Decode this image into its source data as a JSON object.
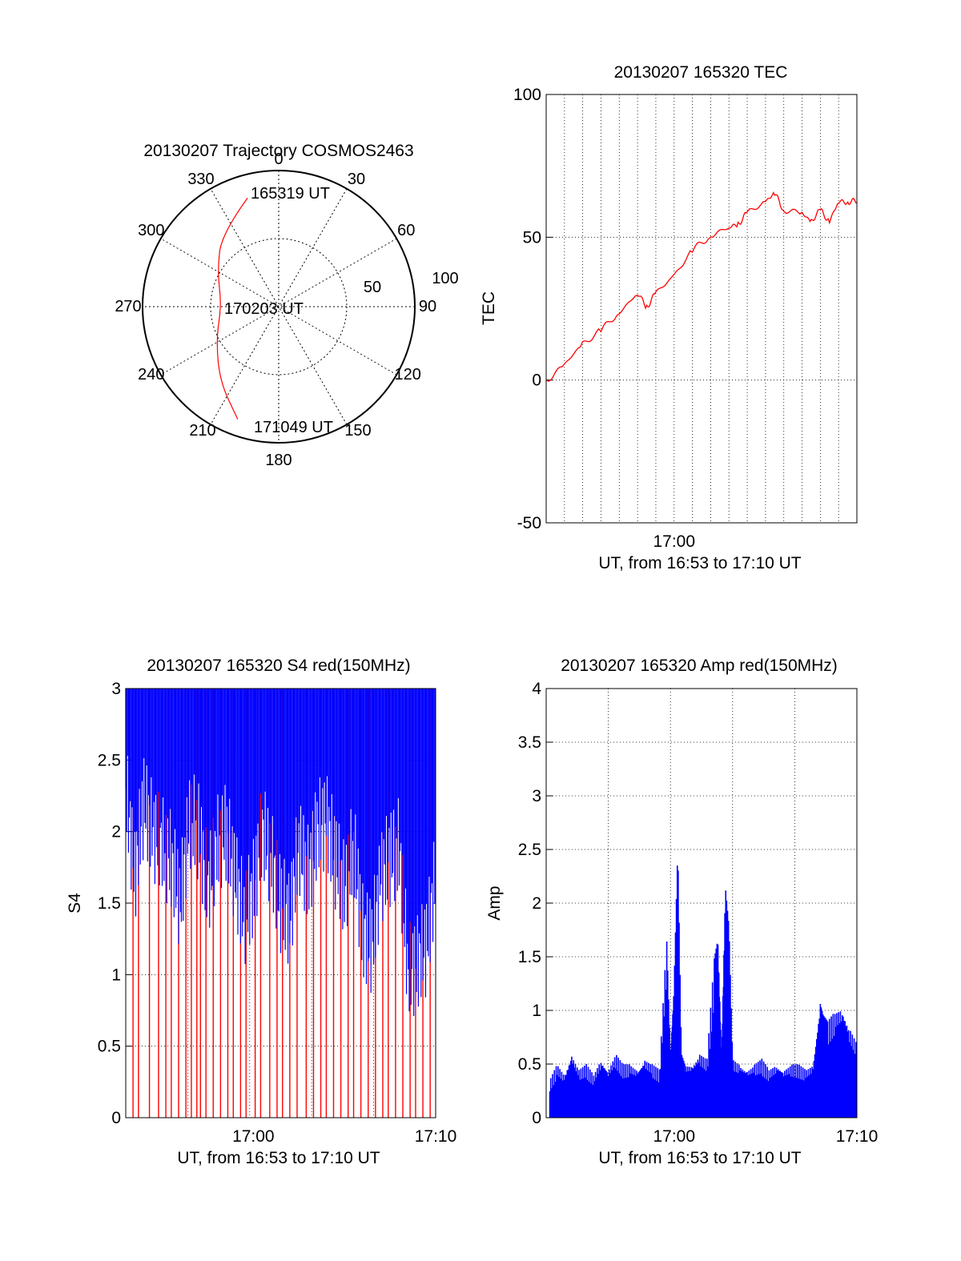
{
  "colors": {
    "series_red": "#ff0000",
    "series_blue": "#0000ff",
    "axis": "#000000",
    "grid": "#000000"
  },
  "chart_data": [
    {
      "type": "polar",
      "title": "20130207 Trajectory COSMOS2463",
      "angle_labels": [
        "0",
        "30",
        "60",
        "90",
        "120",
        "150",
        "180",
        "210",
        "240",
        "270",
        "300",
        "330"
      ],
      "radial_labels": [
        "50",
        "100"
      ],
      "rlim": [
        0,
        100
      ],
      "grid": true,
      "annotations": [
        {
          "text": "165319 UT",
          "az": 344,
          "r": 82
        },
        {
          "text": "170203 UT",
          "az": 270,
          "r": 16
        },
        {
          "text": "171049 UT",
          "az": 200,
          "r": 90
        }
      ],
      "series": [
        {
          "color": "#ff0000",
          "points": [
            {
              "az": 344,
              "r": 83
            },
            {
              "az": 322,
              "r": 68
            },
            {
              "az": 300,
              "r": 52
            },
            {
              "az": 272,
              "r": 42
            },
            {
              "az": 242,
              "r": 52
            },
            {
              "az": 218,
              "r": 70
            },
            {
              "az": 200,
              "r": 88
            }
          ]
        }
      ]
    },
    {
      "type": "line",
      "title": "20130207 165320 TEC",
      "xlabel": "UT, from 16:53 to 17:10 UT",
      "ylabel": "TEC",
      "xlim": [
        0,
        17
      ],
      "ylim": [
        -50,
        100
      ],
      "y_ticks": [
        100,
        50,
        0,
        -50
      ],
      "x_ticks": [
        {
          "x": 7,
          "label": "17:00"
        }
      ],
      "grid": true,
      "series": [
        {
          "color": "#ff0000",
          "x": [
            0,
            1,
            2,
            3,
            4,
            5,
            5.5,
            6,
            7,
            8,
            9,
            10,
            10.5,
            11,
            12,
            12.5,
            13,
            14,
            14.5,
            15,
            15.5,
            16,
            16.5,
            17
          ],
          "y": [
            0,
            5,
            13,
            17,
            24,
            30,
            26,
            30,
            37,
            45,
            51,
            53,
            55,
            58,
            63,
            65,
            60,
            58,
            56,
            59,
            56,
            62,
            63,
            62
          ]
        }
      ]
    },
    {
      "type": "line",
      "title": "20130207 165320 S4 red(150MHz)",
      "xlabel": "UT, from 16:53 to 17:10 UT",
      "ylabel": "S4",
      "xlim": [
        0,
        17
      ],
      "ylim": [
        0,
        3
      ],
      "y_ticks": [
        0,
        0.5,
        1,
        1.5,
        2,
        2.5,
        3
      ],
      "x_ticks": [
        {
          "x": 7,
          "label": "17:00"
        },
        {
          "x": 17,
          "label": "17:10"
        }
      ],
      "grid": true,
      "series": [
        {
          "color": "#ff0000",
          "spikes_x": [
            0.4,
            0.7,
            1.3,
            1.8,
            2.2,
            2.5,
            2.9,
            3.3,
            3.6,
            3.9,
            4.1,
            4.4,
            4.8,
            5.2,
            5.6,
            5.9,
            6.3,
            6.6,
            7.1,
            7.4,
            7.9,
            8.3,
            8.6,
            9.0,
            9.4,
            9.9,
            10.3,
            10.7,
            11.0,
            11.4,
            11.8,
            12.2,
            12.5,
            12.9,
            13.3,
            13.7,
            14.1,
            14.4,
            14.8,
            15.2,
            15.6,
            15.9,
            16.3,
            16.7
          ]
        },
        {
          "color": "#0000ff",
          "envelope_x": [
            0,
            0.5,
            1,
            1.5,
            2,
            2.5,
            3,
            3.5,
            4,
            4.5,
            5,
            5.5,
            6,
            6.5,
            7,
            7.5,
            8,
            8.5,
            9,
            9.5,
            10,
            10.5,
            11,
            11.5,
            12,
            12.5,
            13,
            13.5,
            14,
            14.5,
            15,
            15.5,
            16,
            16.5,
            17
          ],
          "envelope_low": [
            2.3,
            1.7,
            2.2,
            2.0,
            1.9,
            1.8,
            1.5,
            2.1,
            2.0,
            1.6,
            1.9,
            2.0,
            1.7,
            1.4,
            1.6,
            2.0,
            1.8,
            1.5,
            1.4,
            1.9,
            1.7,
            2.0,
            2.1,
            1.8,
            1.6,
            1.9,
            1.3,
            1.2,
            1.7,
            1.8,
            1.9,
            1.0,
            1.1,
            1.2,
            1.7
          ]
        }
      ]
    },
    {
      "type": "line",
      "title": "20130207 165320 Amp red(150MHz)",
      "xlabel": "UT, from 16:53 to 17:10 UT",
      "ylabel": "Amp",
      "xlim": [
        0,
        17
      ],
      "ylim": [
        0,
        4
      ],
      "y_ticks": [
        0,
        0.5,
        1,
        1.5,
        2,
        2.5,
        3,
        3.5,
        4
      ],
      "x_ticks": [
        {
          "x": 7,
          "label": "17:00"
        },
        {
          "x": 17,
          "label": "17:10"
        }
      ],
      "grid": true,
      "series": [
        {
          "color": "#0000ff",
          "x": [
            0.2,
            0.6,
            1,
            1.4,
            1.8,
            2.2,
            2.6,
            3,
            3.4,
            3.8,
            4.2,
            4.6,
            5,
            5.4,
            5.8,
            6.2,
            6.6,
            6.8,
            7.0,
            7.2,
            7.4,
            7.6,
            8,
            8.4,
            8.8,
            9.2,
            9.4,
            9.6,
            9.8,
            10.0,
            10.2,
            10.6,
            11,
            11.4,
            11.8,
            12.2,
            12.6,
            13,
            13.4,
            13.8,
            14.2,
            14.6,
            15,
            15.2,
            15.4,
            15.8,
            16.2,
            16.6,
            17
          ],
          "y": [
            0.35,
            0.5,
            0.4,
            0.6,
            0.45,
            0.5,
            0.4,
            0.55,
            0.45,
            0.6,
            0.5,
            0.5,
            0.45,
            0.55,
            0.5,
            0.45,
            1.7,
            0.6,
            1.3,
            2.55,
            0.6,
            0.5,
            0.5,
            0.6,
            0.55,
            1.5,
            1.7,
            0.6,
            2.2,
            1.8,
            0.55,
            0.5,
            0.45,
            0.5,
            0.55,
            0.45,
            0.5,
            0.45,
            0.5,
            0.5,
            0.45,
            0.5,
            1.1,
            0.95,
            0.9,
            1.0,
            1.05,
            0.85,
            0.7
          ]
        }
      ]
    }
  ]
}
